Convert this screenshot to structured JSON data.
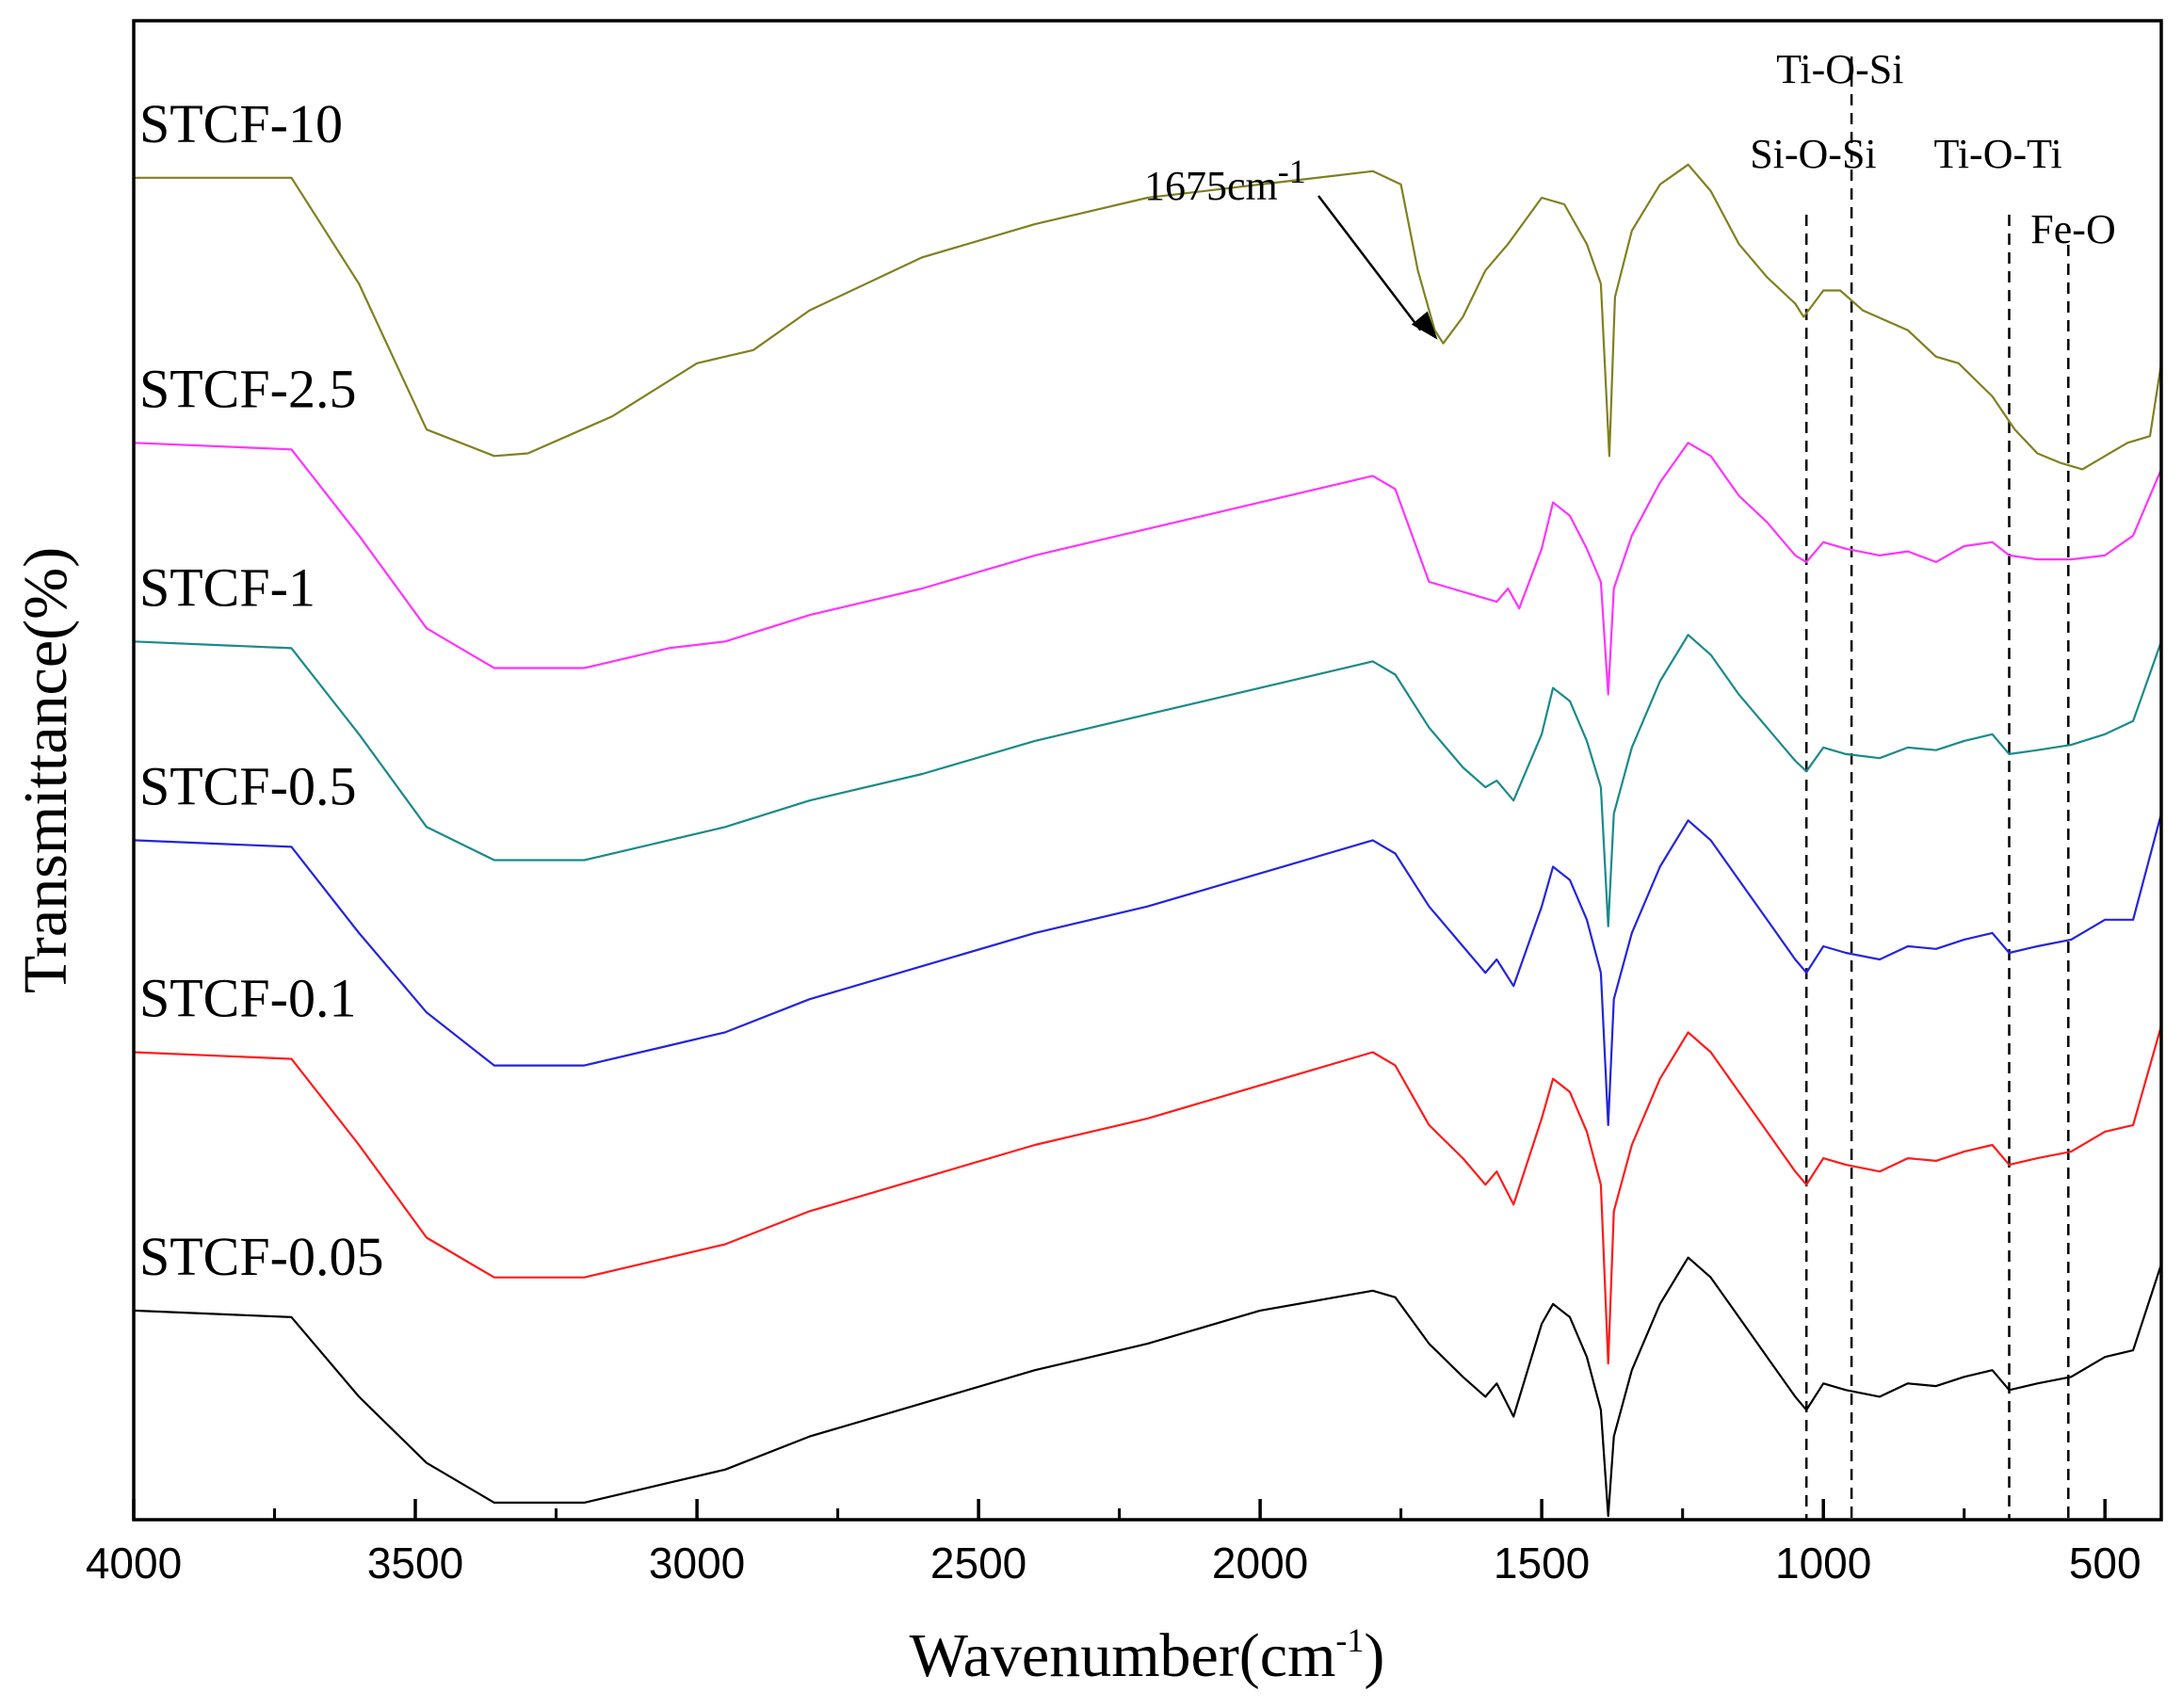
{
  "chart_data": {
    "type": "line",
    "title": "",
    "xlabel": "Wavenumber(cm",
    "xlabel_sup": "-1",
    "xlabel_close": ")",
    "ylabel": "Transmittance(%)",
    "xlim": [
      4000,
      400
    ],
    "x_reversed": true,
    "y_units": "arbitrary, vertically offset traces",
    "ylim": [
      0,
      11.3
    ],
    "grid": false,
    "xticks": [
      4000,
      3500,
      3000,
      2500,
      2000,
      1500,
      1000,
      500
    ],
    "xtick_labels": [
      "4000",
      "3500",
      "3000",
      "2500",
      "2000",
      "1500",
      "1000",
      "500"
    ],
    "series": [
      {
        "name": "STCF-10",
        "color": "#808020",
        "points": [
          [
            4000,
            10.1
          ],
          [
            3720,
            10.1
          ],
          [
            3600,
            9.3
          ],
          [
            3480,
            8.2
          ],
          [
            3360,
            8.0
          ],
          [
            3300,
            8.02
          ],
          [
            3150,
            8.3
          ],
          [
            3000,
            8.7
          ],
          [
            2900,
            8.8
          ],
          [
            2800,
            9.1
          ],
          [
            2600,
            9.5
          ],
          [
            2400,
            9.75
          ],
          [
            2200,
            9.95
          ],
          [
            2000,
            10.05
          ],
          [
            1800,
            10.15
          ],
          [
            1750,
            10.05
          ],
          [
            1720,
            9.4
          ],
          [
            1690,
            8.95
          ],
          [
            1675,
            8.85
          ],
          [
            1640,
            9.05
          ],
          [
            1600,
            9.4
          ],
          [
            1560,
            9.6
          ],
          [
            1500,
            9.95
          ],
          [
            1460,
            9.9
          ],
          [
            1420,
            9.6
          ],
          [
            1395,
            9.3
          ],
          [
            1380,
            8.0
          ],
          [
            1370,
            9.2
          ],
          [
            1340,
            9.7
          ],
          [
            1290,
            10.05
          ],
          [
            1240,
            10.2
          ],
          [
            1200,
            10.0
          ],
          [
            1150,
            9.6
          ],
          [
            1100,
            9.35
          ],
          [
            1050,
            9.15
          ],
          [
            1035,
            9.05
          ],
          [
            1000,
            9.25
          ],
          [
            970,
            9.25
          ],
          [
            930,
            9.1
          ],
          [
            850,
            8.95
          ],
          [
            800,
            8.75
          ],
          [
            760,
            8.7
          ],
          [
            700,
            8.45
          ],
          [
            660,
            8.2
          ],
          [
            620,
            8.02
          ],
          [
            580,
            7.95
          ],
          [
            540,
            7.9
          ],
          [
            500,
            8.0
          ],
          [
            460,
            8.1
          ],
          [
            420,
            8.15
          ],
          [
            400,
            8.7
          ]
        ]
      },
      {
        "name": "STCF-2.5",
        "color": "#ff33ff",
        "points": [
          [
            4000,
            8.1
          ],
          [
            3720,
            8.05
          ],
          [
            3600,
            7.4
          ],
          [
            3480,
            6.7
          ],
          [
            3360,
            6.4
          ],
          [
            3200,
            6.4
          ],
          [
            3050,
            6.55
          ],
          [
            2950,
            6.6
          ],
          [
            2800,
            6.8
          ],
          [
            2600,
            7.0
          ],
          [
            2400,
            7.25
          ],
          [
            2200,
            7.45
          ],
          [
            2000,
            7.65
          ],
          [
            1800,
            7.85
          ],
          [
            1760,
            7.75
          ],
          [
            1700,
            7.05
          ],
          [
            1660,
            7.0
          ],
          [
            1620,
            6.95
          ],
          [
            1580,
            6.9
          ],
          [
            1560,
            7.0
          ],
          [
            1540,
            6.85
          ],
          [
            1500,
            7.3
          ],
          [
            1480,
            7.65
          ],
          [
            1450,
            7.55
          ],
          [
            1420,
            7.3
          ],
          [
            1395,
            7.05
          ],
          [
            1382,
            6.2
          ],
          [
            1372,
            7.0
          ],
          [
            1340,
            7.4
          ],
          [
            1290,
            7.8
          ],
          [
            1240,
            8.1
          ],
          [
            1200,
            8.0
          ],
          [
            1150,
            7.7
          ],
          [
            1100,
            7.5
          ],
          [
            1050,
            7.25
          ],
          [
            1030,
            7.2
          ],
          [
            1000,
            7.35
          ],
          [
            960,
            7.3
          ],
          [
            900,
            7.25
          ],
          [
            850,
            7.28
          ],
          [
            800,
            7.2
          ],
          [
            750,
            7.32
          ],
          [
            700,
            7.35
          ],
          [
            670,
            7.25
          ],
          [
            620,
            7.22
          ],
          [
            560,
            7.22
          ],
          [
            500,
            7.25
          ],
          [
            450,
            7.4
          ],
          [
            400,
            7.9
          ]
        ]
      },
      {
        "name": "STCF-1",
        "color": "#1a8a8a",
        "points": [
          [
            4000,
            6.6
          ],
          [
            3720,
            6.55
          ],
          [
            3600,
            5.9
          ],
          [
            3480,
            5.2
          ],
          [
            3360,
            4.95
          ],
          [
            3200,
            4.95
          ],
          [
            3050,
            5.1
          ],
          [
            2950,
            5.2
          ],
          [
            2800,
            5.4
          ],
          [
            2600,
            5.6
          ],
          [
            2400,
            5.85
          ],
          [
            2200,
            6.05
          ],
          [
            2000,
            6.25
          ],
          [
            1800,
            6.45
          ],
          [
            1760,
            6.35
          ],
          [
            1700,
            5.95
          ],
          [
            1640,
            5.65
          ],
          [
            1600,
            5.5
          ],
          [
            1580,
            5.55
          ],
          [
            1550,
            5.4
          ],
          [
            1500,
            5.9
          ],
          [
            1480,
            6.25
          ],
          [
            1450,
            6.15
          ],
          [
            1420,
            5.85
          ],
          [
            1395,
            5.5
          ],
          [
            1382,
            4.45
          ],
          [
            1372,
            5.3
          ],
          [
            1340,
            5.8
          ],
          [
            1290,
            6.3
          ],
          [
            1240,
            6.65
          ],
          [
            1200,
            6.5
          ],
          [
            1150,
            6.2
          ],
          [
            1100,
            5.95
          ],
          [
            1050,
            5.7
          ],
          [
            1030,
            5.62
          ],
          [
            1000,
            5.8
          ],
          [
            960,
            5.75
          ],
          [
            900,
            5.72
          ],
          [
            850,
            5.8
          ],
          [
            800,
            5.78
          ],
          [
            750,
            5.85
          ],
          [
            700,
            5.9
          ],
          [
            670,
            5.75
          ],
          [
            620,
            5.78
          ],
          [
            560,
            5.82
          ],
          [
            500,
            5.9
          ],
          [
            450,
            6.0
          ],
          [
            400,
            6.6
          ]
        ]
      },
      {
        "name": "STCF-0.5",
        "color": "#2424dd",
        "points": [
          [
            4000,
            5.1
          ],
          [
            3720,
            5.05
          ],
          [
            3600,
            4.4
          ],
          [
            3480,
            3.8
          ],
          [
            3360,
            3.4
          ],
          [
            3200,
            3.4
          ],
          [
            3050,
            3.55
          ],
          [
            2950,
            3.65
          ],
          [
            2800,
            3.9
          ],
          [
            2600,
            4.15
          ],
          [
            2400,
            4.4
          ],
          [
            2200,
            4.6
          ],
          [
            2000,
            4.85
          ],
          [
            1800,
            5.1
          ],
          [
            1760,
            5.0
          ],
          [
            1700,
            4.6
          ],
          [
            1640,
            4.3
          ],
          [
            1600,
            4.1
          ],
          [
            1580,
            4.2
          ],
          [
            1550,
            4.0
          ],
          [
            1500,
            4.6
          ],
          [
            1480,
            4.9
          ],
          [
            1450,
            4.8
          ],
          [
            1420,
            4.5
          ],
          [
            1395,
            4.1
          ],
          [
            1382,
            2.95
          ],
          [
            1372,
            3.9
          ],
          [
            1340,
            4.4
          ],
          [
            1290,
            4.9
          ],
          [
            1240,
            5.25
          ],
          [
            1200,
            5.1
          ],
          [
            1150,
            4.8
          ],
          [
            1100,
            4.5
          ],
          [
            1050,
            4.2
          ],
          [
            1030,
            4.1
          ],
          [
            1000,
            4.3
          ],
          [
            960,
            4.25
          ],
          [
            900,
            4.2
          ],
          [
            850,
            4.3
          ],
          [
            800,
            4.28
          ],
          [
            750,
            4.35
          ],
          [
            700,
            4.4
          ],
          [
            670,
            4.25
          ],
          [
            620,
            4.3
          ],
          [
            560,
            4.35
          ],
          [
            500,
            4.5
          ],
          [
            450,
            4.5
          ],
          [
            400,
            5.3
          ]
        ]
      },
      {
        "name": "STCF-0.1",
        "color": "#ff1a1a",
        "points": [
          [
            4000,
            3.5
          ],
          [
            3720,
            3.45
          ],
          [
            3600,
            2.8
          ],
          [
            3480,
            2.1
          ],
          [
            3360,
            1.8
          ],
          [
            3200,
            1.8
          ],
          [
            3050,
            1.95
          ],
          [
            2950,
            2.05
          ],
          [
            2800,
            2.3
          ],
          [
            2600,
            2.55
          ],
          [
            2400,
            2.8
          ],
          [
            2200,
            3.0
          ],
          [
            2000,
            3.25
          ],
          [
            1800,
            3.5
          ],
          [
            1760,
            3.4
          ],
          [
            1700,
            2.95
          ],
          [
            1640,
            2.7
          ],
          [
            1600,
            2.5
          ],
          [
            1580,
            2.6
          ],
          [
            1550,
            2.35
          ],
          [
            1500,
            3.0
          ],
          [
            1480,
            3.3
          ],
          [
            1450,
            3.2
          ],
          [
            1420,
            2.9
          ],
          [
            1395,
            2.5
          ],
          [
            1382,
            1.15
          ],
          [
            1372,
            2.3
          ],
          [
            1340,
            2.8
          ],
          [
            1290,
            3.3
          ],
          [
            1240,
            3.65
          ],
          [
            1200,
            3.5
          ],
          [
            1150,
            3.2
          ],
          [
            1100,
            2.9
          ],
          [
            1050,
            2.6
          ],
          [
            1030,
            2.5
          ],
          [
            1000,
            2.7
          ],
          [
            960,
            2.65
          ],
          [
            900,
            2.6
          ],
          [
            850,
            2.7
          ],
          [
            800,
            2.68
          ],
          [
            750,
            2.75
          ],
          [
            700,
            2.8
          ],
          [
            670,
            2.65
          ],
          [
            620,
            2.7
          ],
          [
            560,
            2.75
          ],
          [
            500,
            2.9
          ],
          [
            450,
            2.95
          ],
          [
            400,
            3.7
          ]
        ]
      },
      {
        "name": "STCF-0.05",
        "color": "#000000",
        "points": [
          [
            4000,
            1.55
          ],
          [
            3720,
            1.5
          ],
          [
            3600,
            0.9
          ],
          [
            3480,
            0.4
          ],
          [
            3360,
            0.1
          ],
          [
            3200,
            0.1
          ],
          [
            3050,
            0.25
          ],
          [
            2950,
            0.35
          ],
          [
            2800,
            0.6
          ],
          [
            2600,
            0.85
          ],
          [
            2400,
            1.1
          ],
          [
            2200,
            1.3
          ],
          [
            2000,
            1.55
          ],
          [
            1800,
            1.7
          ],
          [
            1760,
            1.65
          ],
          [
            1700,
            1.3
          ],
          [
            1640,
            1.05
          ],
          [
            1600,
            0.9
          ],
          [
            1580,
            1.0
          ],
          [
            1550,
            0.75
          ],
          [
            1500,
            1.45
          ],
          [
            1480,
            1.6
          ],
          [
            1450,
            1.5
          ],
          [
            1420,
            1.2
          ],
          [
            1395,
            0.8
          ],
          [
            1382,
            0.0
          ],
          [
            1372,
            0.6
          ],
          [
            1340,
            1.1
          ],
          [
            1290,
            1.6
          ],
          [
            1240,
            1.95
          ],
          [
            1200,
            1.8
          ],
          [
            1150,
            1.5
          ],
          [
            1100,
            1.2
          ],
          [
            1050,
            0.9
          ],
          [
            1030,
            0.8
          ],
          [
            1000,
            1.0
          ],
          [
            960,
            0.95
          ],
          [
            900,
            0.9
          ],
          [
            850,
            1.0
          ],
          [
            800,
            0.98
          ],
          [
            750,
            1.05
          ],
          [
            700,
            1.1
          ],
          [
            670,
            0.95
          ],
          [
            620,
            1.0
          ],
          [
            560,
            1.05
          ],
          [
            500,
            1.2
          ],
          [
            450,
            1.25
          ],
          [
            400,
            1.9
          ]
        ]
      }
    ],
    "vertical_markers": [
      {
        "label": "Si-O-Si",
        "x": 1030
      },
      {
        "label": "Ti-O-Si",
        "x": 950
      },
      {
        "label": "Ti-O-Ti",
        "x": 670
      },
      {
        "label": "Fe-O",
        "x": 565
      }
    ],
    "arrow_annotation": {
      "text": "1675cm",
      "sup": "-1",
      "x": 1675
    }
  },
  "colors": {
    "axis": "#000000",
    "markers": "#000000"
  }
}
